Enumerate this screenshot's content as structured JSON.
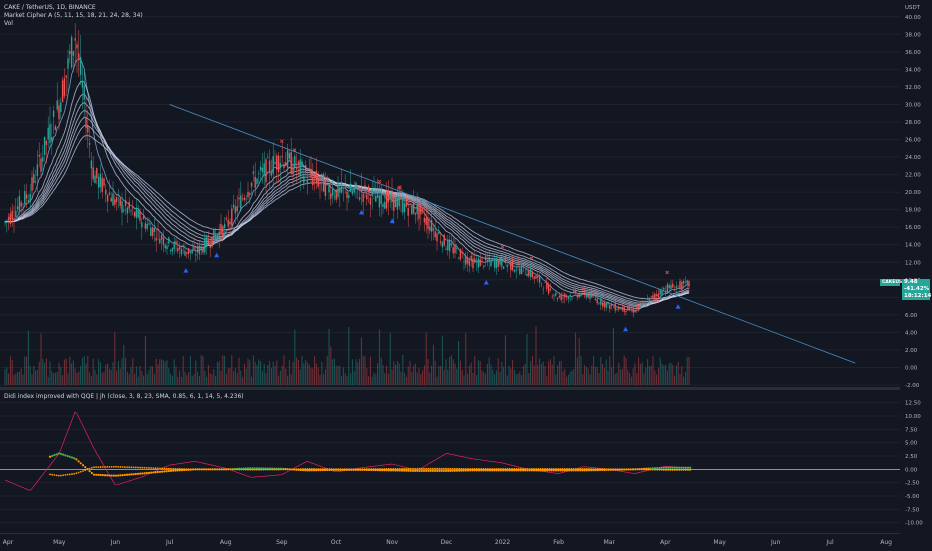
{
  "legend": {
    "symbol": "CAKE / TetherUS, 1D, BINANCE",
    "indicator1": "Market Cipher A (5, 11, 15, 18, 21, 24, 28, 34)",
    "indicator2": "Vol",
    "indicator3": "Didi index improved with QQE | jh (close, 3, 8, 23, SMA, 0.85, 6, 1, 14, 5, 4.236)"
  },
  "axis": {
    "currency": "USDT",
    "price_ticks": [
      "40.00",
      "38.00",
      "36.00",
      "34.00",
      "32.00",
      "30.00",
      "28.00",
      "26.00",
      "24.00",
      "22.00",
      "20.00",
      "18.00",
      "16.00",
      "14.00",
      "12.00",
      "10.00",
      "8.00",
      "6.00",
      "4.00",
      "2.00",
      "0.00",
      "-2.00"
    ],
    "osc_ticks": [
      "12.50",
      "10.00",
      "7.50",
      "5.00",
      "2.50",
      "0.00",
      "-2.50",
      "-5.00",
      "-7.50",
      "-10.00"
    ],
    "time_ticks": [
      "Apr",
      "May",
      "Jun",
      "Jul",
      "Aug",
      "Sep",
      "Oct",
      "Nov",
      "Dec",
      "2022",
      "Feb",
      "Mar",
      "Apr",
      "May",
      "Jun",
      "Jul",
      "Aug"
    ]
  },
  "price_tag": {
    "symbol": "CAKEUSDT",
    "price": "9.48",
    "change": "-41.42%",
    "countdown": "18:12:14"
  },
  "colors": {
    "background": "#131722",
    "up": "#26a69a",
    "down": "#ef5350",
    "trendline": "#4a90c8",
    "ribbon": "#c5d0ea",
    "didi_green": "#4caf50",
    "didi_orange": "#ff9800",
    "didi_pink": "#e91e63"
  },
  "chart_data": [
    {
      "type": "line",
      "title": "CAKE / TetherUS, 1D, BINANCE",
      "description_series": "approximate daily close (weekly samples)",
      "x": [
        "2021-04-01",
        "2021-04-15",
        "2021-05-01",
        "2021-05-10",
        "2021-05-20",
        "2021-06-01",
        "2021-06-15",
        "2021-07-01",
        "2021-07-15",
        "2021-08-01",
        "2021-08-15",
        "2021-09-01",
        "2021-09-15",
        "2021-10-01",
        "2021-10-15",
        "2021-11-01",
        "2021-11-15",
        "2021-12-01",
        "2021-12-15",
        "2022-01-01",
        "2022-01-15",
        "2022-02-01",
        "2022-02-15",
        "2022-03-01",
        "2022-03-15",
        "2022-04-01",
        "2022-04-15"
      ],
      "series": [
        {
          "values": [
            16.5,
            20,
            30,
            38,
            22,
            19,
            17,
            14,
            13,
            16,
            21,
            24,
            22,
            20,
            20,
            19,
            18,
            14,
            12,
            12,
            11,
            8,
            8.5,
            7,
            6.5,
            9,
            9.5
          ]
        }
      ],
      "ylim": [
        -2,
        40
      ],
      "trendline": {
        "start": [
          "2021-07-01",
          30.0
        ],
        "end": [
          "2022-07-15",
          0.5
        ]
      }
    },
    {
      "type": "bar",
      "title": "Vol",
      "note": "relative volume histogram at bottom of price pane"
    },
    {
      "type": "line",
      "title": "Didi index improved with QQE | jh",
      "x": [
        "2021-04-01",
        "2021-04-15",
        "2021-05-01",
        "2021-05-10",
        "2021-05-20",
        "2021-06-01",
        "2021-06-15",
        "2021-07-01",
        "2021-07-15",
        "2021-08-01",
        "2021-08-15",
        "2021-09-01",
        "2021-09-15",
        "2021-10-01",
        "2021-10-15",
        "2021-11-01",
        "2021-11-15",
        "2021-12-01",
        "2021-12-15",
        "2022-01-01",
        "2022-01-15",
        "2022-02-01",
        "2022-02-15",
        "2022-03-01",
        "2022-03-15",
        "2022-04-01",
        "2022-04-15"
      ],
      "series": [
        {
          "values": [
            -2,
            -4,
            3,
            11,
            4,
            -3,
            -1.5,
            0.8,
            1.5,
            0.2,
            -1.5,
            -1,
            1.5,
            -0.5,
            0.3,
            1,
            -0.2,
            3,
            2,
            1.2,
            0,
            -0.8,
            0.5,
            0,
            -0.8,
            0.6,
            0.2
          ]
        },
        {
          "values": [
            0,
            1,
            3,
            2,
            -1,
            -1.2,
            -0.8,
            -0.3,
            0,
            0,
            0.2,
            0.1,
            -0.2,
            -0.1,
            -0.1,
            -0.2,
            -0.3,
            -0.3,
            -0.2,
            -0.2,
            -0.2,
            -0.2,
            -0.2,
            -0.1,
            0,
            0.3,
            0.3
          ]
        }
      ],
      "ylim": [
        -10,
        12.5
      ]
    }
  ]
}
